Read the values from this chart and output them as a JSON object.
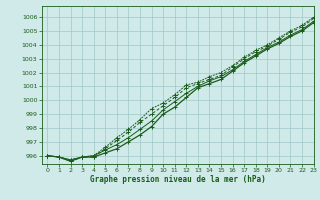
{
  "xlabel": "Graphe pression niveau de la mer (hPa)",
  "xlim": [
    -0.5,
    23
  ],
  "ylim": [
    995.4,
    1006.8
  ],
  "yticks": [
    996,
    997,
    998,
    999,
    1000,
    1001,
    1002,
    1003,
    1004,
    1005,
    1006
  ],
  "xticks": [
    0,
    1,
    2,
    3,
    4,
    5,
    6,
    7,
    8,
    9,
    10,
    11,
    12,
    13,
    14,
    15,
    16,
    17,
    18,
    19,
    20,
    21,
    22,
    23
  ],
  "bg_color": "#d0eaea",
  "grid_color": "#a0c8c8",
  "line_color": "#1a5c1a",
  "line1_x": [
    0,
    1,
    2,
    3,
    4,
    5,
    6,
    7,
    8,
    9,
    10,
    11,
    12,
    13,
    14,
    15,
    16,
    17,
    18,
    19,
    20,
    21,
    22,
    23
  ],
  "line1_y": [
    996.0,
    995.9,
    995.7,
    995.9,
    996.0,
    996.4,
    996.8,
    997.3,
    997.9,
    998.5,
    999.3,
    999.9,
    1000.5,
    1001.0,
    1001.4,
    1001.7,
    1002.2,
    1002.8,
    1003.3,
    1003.8,
    1004.2,
    1004.7,
    1005.1,
    1005.7
  ],
  "line2_x": [
    0,
    1,
    2,
    3,
    4,
    5,
    6,
    7,
    8,
    9,
    10,
    11,
    12,
    13,
    14,
    15,
    16,
    17,
    18,
    19,
    20,
    21,
    22,
    23
  ],
  "line2_y": [
    996.0,
    995.9,
    995.6,
    995.9,
    995.9,
    996.5,
    997.1,
    997.7,
    998.4,
    999.0,
    999.6,
    1000.2,
    1000.9,
    1001.2,
    1001.5,
    1001.8,
    1002.4,
    1003.0,
    1003.5,
    1003.9,
    1004.4,
    1004.9,
    1005.3,
    1005.9
  ],
  "line3_x": [
    0,
    1,
    2,
    3,
    4,
    5,
    6,
    7,
    8,
    9,
    10,
    11,
    12,
    13,
    14,
    15,
    16,
    17,
    18,
    19,
    20,
    21,
    22,
    23
  ],
  "line3_y": [
    996.0,
    995.9,
    995.6,
    995.9,
    995.9,
    996.2,
    996.5,
    997.0,
    997.5,
    998.1,
    999.0,
    999.5,
    1000.2,
    1000.9,
    1001.2,
    1001.5,
    1002.1,
    1002.7,
    1003.2,
    1003.7,
    1004.1,
    1004.6,
    1005.0,
    1005.6
  ],
  "line4_x": [
    0,
    1,
    2,
    3,
    4,
    5,
    6,
    7,
    8,
    9,
    10,
    11,
    12,
    13,
    14,
    15,
    16,
    17,
    18,
    19,
    20,
    21,
    22,
    23
  ],
  "line4_y": [
    996.0,
    995.9,
    995.7,
    995.9,
    996.0,
    996.6,
    997.3,
    997.9,
    998.6,
    999.4,
    999.8,
    1000.4,
    1001.1,
    1001.3,
    1001.7,
    1002.0,
    1002.5,
    1003.1,
    1003.6,
    1004.0,
    1004.5,
    1005.0,
    1005.4,
    1006.0
  ]
}
